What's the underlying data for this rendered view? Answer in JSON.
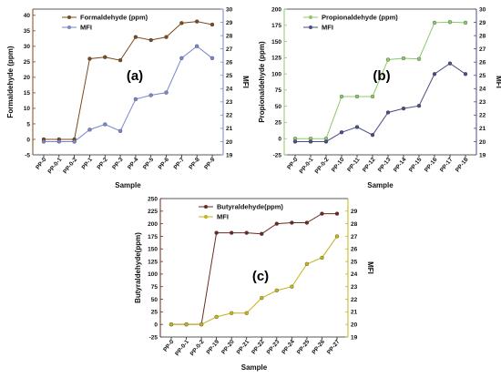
{
  "chart_data": [
    {
      "type": "line",
      "panel_label": "(a)",
      "xlabel": "Sample",
      "ylabel": "Formaldehyde (ppm)",
      "y2label": "MFI",
      "categories": [
        "PP-0",
        "PP-0-1",
        "PP-0-2",
        "PP-1",
        "PP-2",
        "PP-3",
        "PP-4",
        "PP-5",
        "PP-6",
        "PP-7",
        "PP-8",
        "PP-9"
      ],
      "ylim": [
        -5,
        42
      ],
      "yticks": [
        -5,
        0,
        5,
        10,
        15,
        20,
        25,
        30,
        35,
        40
      ],
      "y2lim": [
        19,
        30
      ],
      "y2ticks": [
        19,
        20,
        21,
        22,
        23,
        24,
        25,
        26,
        27,
        28,
        29,
        30
      ],
      "grid": false,
      "legend": "top-left",
      "series": [
        {
          "name": "Formaldehyde (ppm)",
          "axis": "left",
          "color": "#7b4a1e",
          "marker": "circle",
          "values": [
            0,
            0,
            0,
            26,
            26.5,
            25.5,
            33,
            32,
            33,
            37.5,
            38,
            37
          ]
        },
        {
          "name": "MFI",
          "axis": "right",
          "color": "#7a86c9",
          "marker": "circle",
          "values": [
            20,
            20,
            20,
            20.9,
            21.3,
            20.8,
            23.2,
            23.5,
            23.7,
            26.3,
            27.2,
            26.3
          ]
        }
      ]
    },
    {
      "type": "line",
      "panel_label": "(b)",
      "xlabel": "Sample",
      "ylabel": "Propionaldehyde (ppm)",
      "y2label": "MFI",
      "categories": [
        "PP-0",
        "PP-0-1",
        "PP-0-2",
        "PP-10",
        "PP-11",
        "PP-12",
        "PP-13",
        "PP-14",
        "PP-15",
        "PP-16",
        "PP-17",
        "PP-18"
      ],
      "ylim": [
        -25,
        200
      ],
      "yticks": [
        -25,
        0,
        25,
        50,
        75,
        100,
        125,
        150,
        175,
        200
      ],
      "y2lim": [
        19,
        30
      ],
      "y2ticks": [
        19,
        20,
        21,
        22,
        23,
        24,
        25,
        26,
        27,
        28,
        29,
        30
      ],
      "grid": false,
      "legend": "top-left",
      "series": [
        {
          "name": "Propionaldehyde (ppm)",
          "axis": "left",
          "color": "#8cc868",
          "marker": "circle",
          "values": [
            0,
            0,
            0,
            65,
            65,
            65,
            122,
            124,
            123,
            179,
            180,
            179
          ]
        },
        {
          "name": "MFI",
          "axis": "right",
          "color": "#4a4d86",
          "marker": "circle",
          "values": [
            20,
            20,
            20,
            20.7,
            21.1,
            20.5,
            22.2,
            22.5,
            22.7,
            25.1,
            25.9,
            25.1
          ]
        }
      ]
    },
    {
      "type": "line",
      "panel_label": "(c)",
      "xlabel": "Sample",
      "ylabel": "Butyraldehyde(ppm)",
      "y2label": "MFI",
      "categories": [
        "PP-0",
        "PP-0-1",
        "PP-0-2",
        "PP-19",
        "PP-20",
        "PP-21",
        "PP-22",
        "PP-23",
        "PP-24",
        "PP-25",
        "PP-26",
        "PP-27"
      ],
      "ylim": [
        -25,
        250
      ],
      "yticks": [
        -25,
        0,
        25,
        50,
        75,
        100,
        125,
        150,
        175,
        200,
        225,
        250
      ],
      "y2lim": [
        19,
        30
      ],
      "y2ticks": [
        19,
        20,
        21,
        22,
        23,
        24,
        25,
        26,
        27,
        28,
        29
      ],
      "grid": false,
      "legend": "top-left",
      "series": [
        {
          "name": "Butyraldehyde(ppm)",
          "axis": "left",
          "color": "#6b2a22",
          "marker": "circle",
          "values": [
            0,
            0,
            0,
            182,
            182,
            182,
            180,
            200,
            202,
            202,
            220,
            220
          ]
        },
        {
          "name": "MFI",
          "axis": "right",
          "color": "#c2b419",
          "marker": "circle",
          "values": [
            20,
            20,
            20,
            20.6,
            20.9,
            20.9,
            22.1,
            22.7,
            23,
            24.8,
            25.3,
            27
          ]
        }
      ]
    }
  ]
}
